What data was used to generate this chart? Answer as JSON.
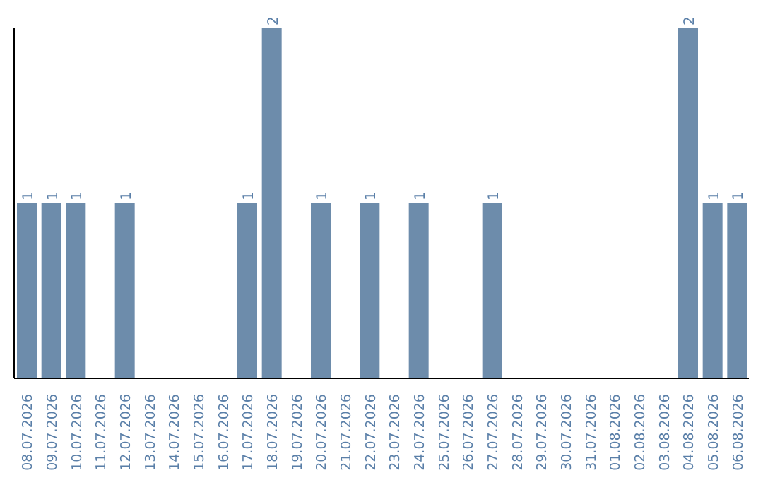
{
  "chart_data": {
    "type": "bar",
    "categories": [
      "08.07.2026",
      "09.07.2026",
      "10.07.2026",
      "11.07.2026",
      "12.07.2026",
      "13.07.2026",
      "14.07.2026",
      "15.07.2026",
      "16.07.2026",
      "17.07.2026",
      "18.07.2026",
      "19.07.2026",
      "20.07.2026",
      "21.07.2026",
      "22.07.2026",
      "23.07.2026",
      "24.07.2026",
      "25.07.2026",
      "26.07.2026",
      "27.07.2026",
      "28.07.2026",
      "29.07.2026",
      "30.07.2026",
      "31.07.2026",
      "01.08.2026",
      "02.08.2026",
      "03.08.2026",
      "04.08.2026",
      "05.08.2026",
      "06.08.2026"
    ],
    "values": [
      1,
      1,
      1,
      0,
      1,
      0,
      0,
      0,
      0,
      1,
      2,
      0,
      1,
      0,
      1,
      0,
      1,
      0,
      0,
      1,
      0,
      0,
      0,
      0,
      0,
      0,
      0,
      2,
      1,
      1
    ],
    "value_labels": [
      "1",
      "1",
      "1",
      null,
      "1",
      null,
      null,
      null,
      null,
      "1",
      "2",
      null,
      "1",
      null,
      "1",
      null,
      "1",
      null,
      null,
      "1",
      null,
      null,
      null,
      null,
      null,
      null,
      null,
      "2",
      "1",
      "1"
    ],
    "color": "#6d8cab",
    "ylim": [
      0,
      2
    ],
    "tick_labels": "x"
  }
}
